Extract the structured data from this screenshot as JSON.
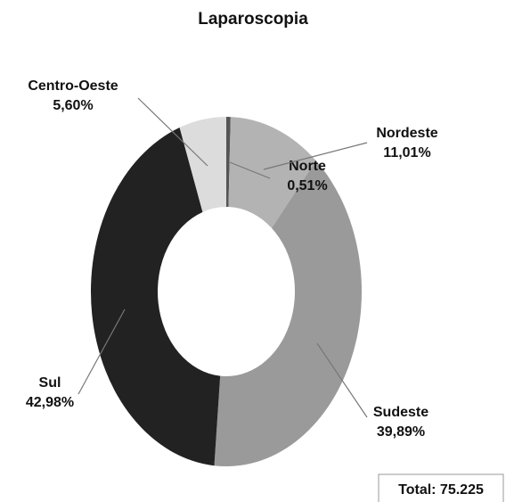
{
  "chart_data": {
    "type": "donut",
    "title": "Laparoscopia",
    "categories": [
      "Norte",
      "Nordeste",
      "Sudeste",
      "Sul",
      "Centro-Oeste"
    ],
    "values": [
      0.51,
      11.01,
      39.89,
      42.98,
      5.6
    ],
    "value_labels": [
      "0,51%",
      "11,01%",
      "39,89%",
      "42,98%",
      "5,60%"
    ],
    "colors": [
      "#555555",
      "#b3b3b3",
      "#9a9a9a",
      "#222222",
      "#dcdcdc"
    ],
    "annotation": "Total: 75.225"
  }
}
